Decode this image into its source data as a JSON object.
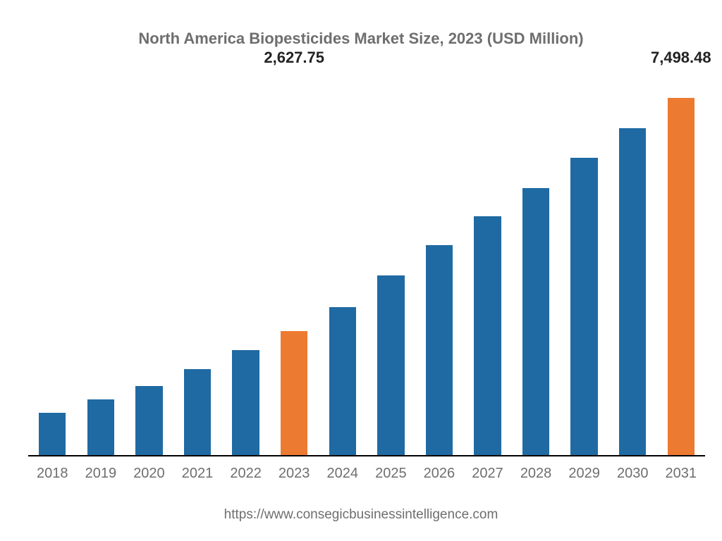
{
  "chart": {
    "type": "bar",
    "title": "North America Biopesticides Market Size, 2023 (USD Million)",
    "title_fontsize": 22,
    "title_color": "#6e6e6e",
    "background_color": "#ffffff",
    "baseline_color": "#000000",
    "bar_width_pct": 56,
    "ymax": 8000,
    "xlabel_fontsize": 20,
    "xlabel_color": "#6e6e6e",
    "datalabel_fontsize": 22,
    "datalabel_color": "#222222",
    "source_text": "https://www.consegicbusinessintelligence.com",
    "source_fontsize": 19,
    "source_color": "#6e6e6e",
    "categories": [
      "2018",
      "2019",
      "2020",
      "2021",
      "2022",
      "2023",
      "2024",
      "2025",
      "2026",
      "2027",
      "2028",
      "2029",
      "2030",
      "2031"
    ],
    "values": [
      920,
      1200,
      1480,
      1820,
      2220,
      2627.75,
      3130,
      3780,
      4420,
      5020,
      5620,
      6240,
      6860,
      7498.48
    ],
    "bar_colors": [
      "#1f6aa3",
      "#1f6aa3",
      "#1f6aa3",
      "#1f6aa3",
      "#1f6aa3",
      "#ed7a31",
      "#1f6aa3",
      "#1f6aa3",
      "#1f6aa3",
      "#1f6aa3",
      "#1f6aa3",
      "#1f6aa3",
      "#1f6aa3",
      "#ed7a31"
    ],
    "show_label": [
      false,
      false,
      false,
      false,
      false,
      true,
      false,
      false,
      false,
      false,
      false,
      false,
      false,
      true
    ],
    "label_text": [
      "",
      "",
      "",
      "",
      "",
      "2,627.75",
      "",
      "",
      "",
      "",
      "",
      "",
      "",
      "7,498.48"
    ]
  }
}
